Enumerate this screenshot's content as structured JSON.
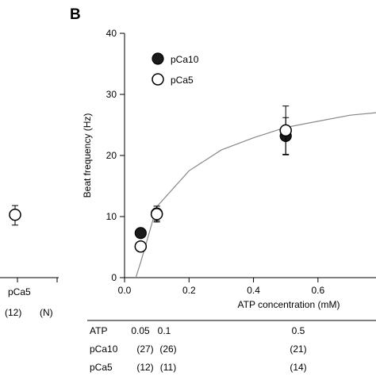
{
  "left_panel": {
    "point_value": 10.3,
    "error_high": 11.8,
    "error_low": 8.6,
    "category_label": "pCa5",
    "n_label": "(12)",
    "n_header": "(N)"
  },
  "chart_data": {
    "type": "scatter",
    "panel_label": "B",
    "xlabel": "ATP concentration (mM)",
    "ylabel": "Beat frequency (Hz)",
    "xlim": [
      0,
      0.78
    ],
    "ylim": [
      0,
      40
    ],
    "x_ticks": [
      "0.0",
      "0.2",
      "0.4",
      "0.6"
    ],
    "y_ticks": [
      "0",
      "10",
      "20",
      "30",
      "40"
    ],
    "legend_position": "top-left",
    "series": [
      {
        "name": "pCa10",
        "marker": "filled-circle",
        "points": [
          {
            "x": 0.05,
            "y": 7.3,
            "err": 0
          },
          {
            "x": 0.1,
            "y": 10.5,
            "err": 1.2
          },
          {
            "x": 0.5,
            "y": 23.2,
            "err": 3.0
          }
        ]
      },
      {
        "name": "pCa5",
        "marker": "open-circle",
        "points": [
          {
            "x": 0.05,
            "y": 5.1,
            "err": 0
          },
          {
            "x": 0.1,
            "y": 10.4,
            "err": 1.3
          },
          {
            "x": 0.5,
            "y": 24.1,
            "err": 4.0
          }
        ]
      }
    ],
    "fit_curve": {
      "x": [
        0.035,
        0.05,
        0.1,
        0.2,
        0.3,
        0.4,
        0.5,
        0.6,
        0.7,
        0.78
      ],
      "y": [
        0.0,
        2.5,
        11.6,
        17.5,
        20.9,
        22.9,
        24.6,
        25.6,
        26.6,
        27.0
      ]
    },
    "n_table": {
      "row_headers": [
        "ATP",
        "pCa10",
        "pCa5"
      ],
      "atp_values": [
        "0.05",
        "0.1",
        "0.5"
      ],
      "pCa10_counts": [
        "(27)",
        "(26)",
        "(21)"
      ],
      "pCa5_counts": [
        "(12)",
        "(11)",
        "(14)"
      ]
    }
  }
}
